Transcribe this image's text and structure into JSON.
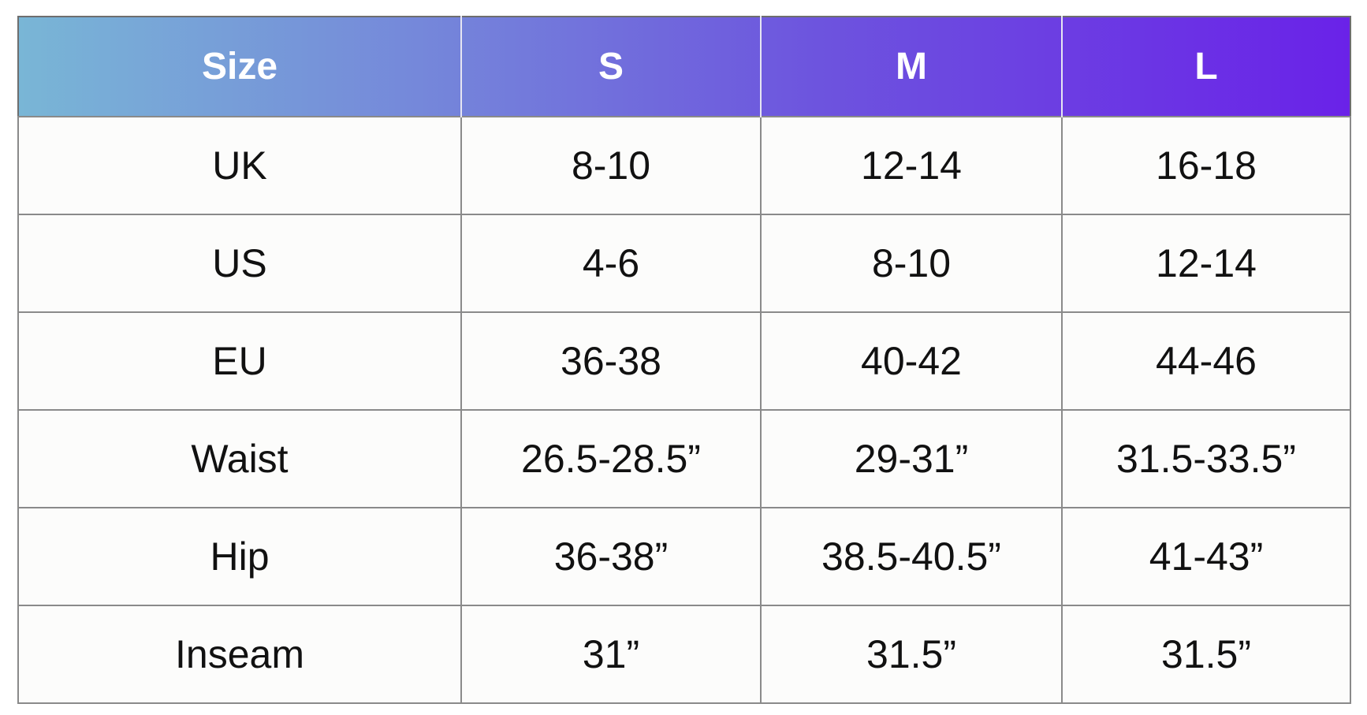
{
  "table": {
    "header": [
      "Size",
      "S",
      "M",
      "L"
    ],
    "rows": [
      [
        "UK",
        "8-10",
        "12-14",
        "16-18"
      ],
      [
        "US",
        "4-6",
        "8-10",
        "12-14"
      ],
      [
        "EU",
        "36-38",
        "40-42",
        "44-46"
      ],
      [
        "Waist",
        "26.5-28.5”",
        "29-31”",
        "31.5-33.5”"
      ],
      [
        "Hip",
        "36-38”",
        "38.5-40.5”",
        "41-43”"
      ],
      [
        "Inseam",
        "31”",
        "31.5”",
        "31.5”"
      ]
    ]
  }
}
